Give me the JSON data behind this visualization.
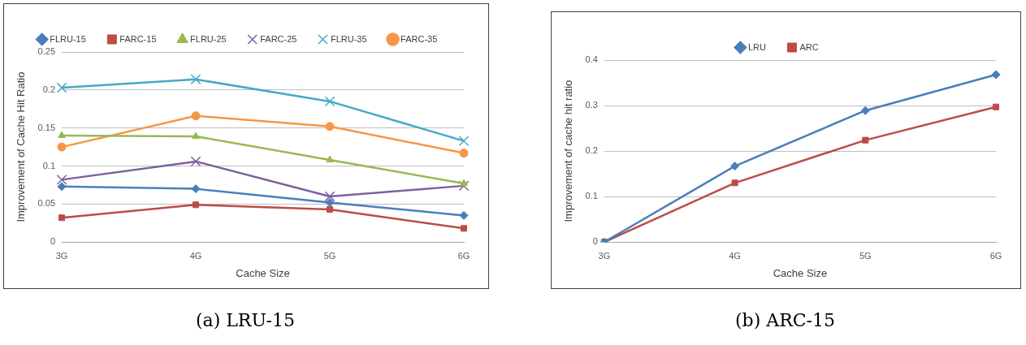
{
  "chart_data": [
    {
      "type": "line",
      "xlabel": "Cache Size",
      "ylabel": "Improvement of Cache Hit Ratio",
      "categories": [
        "3G",
        "4G",
        "5G",
        "6G"
      ],
      "ylim": [
        0,
        0.25
      ],
      "yticks": [
        0,
        0.05,
        0.1,
        0.15,
        0.2,
        0.25
      ],
      "grid": "y",
      "legend": "top",
      "annotations": [
        "(a) LRU-15"
      ],
      "series": [
        {
          "name": "FLRU-15",
          "color": "#4a7ebb",
          "marker": "diamond",
          "values": [
            0.073,
            0.07,
            0.052,
            0.035
          ]
        },
        {
          "name": "FARC-15",
          "color": "#be4b48",
          "marker": "square",
          "values": [
            0.032,
            0.049,
            0.043,
            0.018
          ]
        },
        {
          "name": "FLRU-25",
          "color": "#98b954",
          "marker": "triangle",
          "values": [
            0.14,
            0.139,
            0.108,
            0.077
          ]
        },
        {
          "name": "FARC-25",
          "color": "#7d60a0",
          "marker": "cross",
          "values": [
            0.082,
            0.106,
            0.06,
            0.074
          ]
        },
        {
          "name": "FLRU-35",
          "color": "#46aac5",
          "marker": "cross",
          "values": [
            0.203,
            0.214,
            0.185,
            0.133
          ]
        },
        {
          "name": "FARC-35",
          "color": "#f79646",
          "marker": "circle",
          "values": [
            0.125,
            0.166,
            0.152,
            0.117
          ]
        }
      ]
    },
    {
      "type": "line",
      "xlabel": "Cache Size",
      "ylabel": "Improvement of cache hit ratio",
      "categories": [
        "3G",
        "4G",
        "5G",
        "6G"
      ],
      "ylim": [
        0,
        0.4
      ],
      "yticks": [
        0,
        0.1,
        0.2,
        0.3,
        0.4
      ],
      "grid": "y",
      "legend": "top",
      "annotations": [
        "(b) ARC-15"
      ],
      "series": [
        {
          "name": "LRU",
          "color": "#4a7ebb",
          "marker": "diamond",
          "values": [
            0,
            0.167,
            0.289,
            0.368
          ]
        },
        {
          "name": "ARC",
          "color": "#be4b48",
          "marker": "square",
          "values": [
            0,
            0.13,
            0.224,
            0.297
          ]
        }
      ]
    }
  ]
}
